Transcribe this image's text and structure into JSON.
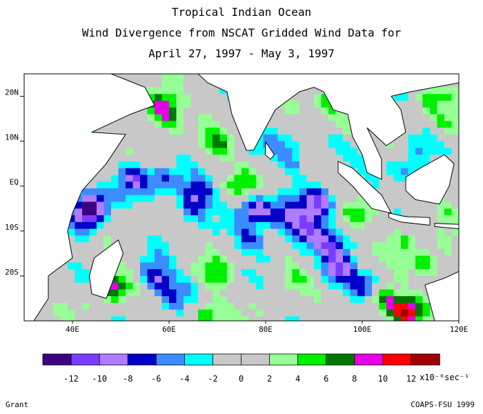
{
  "title": {
    "line1": "Tropical Indian Ocean",
    "line2": "Wind Divergence from NSCAT Gridded Wind Data for",
    "line3": "April 27, 1997 - May 3, 1997"
  },
  "map": {
    "lon_range": [
      30,
      120
    ],
    "lat_range": [
      -30,
      25
    ],
    "lat_ticks": [
      {
        "value": 20,
        "label": "20N"
      },
      {
        "value": 10,
        "label": "10N"
      },
      {
        "value": 0,
        "label": "EQ"
      },
      {
        "value": -10,
        "label": "10S"
      },
      {
        "value": -20,
        "label": "20S"
      }
    ],
    "lon_ticks": [
      {
        "value": 40,
        "label": "40E"
      },
      {
        "value": 60,
        "label": "60E"
      },
      {
        "value": 80,
        "label": "80E"
      },
      {
        "value": 100,
        "label": "100E"
      },
      {
        "value": 120,
        "label": "120E"
      }
    ],
    "field_blobs": [
      {
        "lon": 58,
        "lat": 18,
        "v": 9
      },
      {
        "lon": 60,
        "lat": 15,
        "v": 6
      },
      {
        "lon": 44,
        "lat": -4,
        "v": -11
      },
      {
        "lon": 43,
        "lat": -8,
        "v": -8
      },
      {
        "lon": 53,
        "lat": 2,
        "v": -9
      },
      {
        "lon": 59,
        "lat": 1,
        "v": -6
      },
      {
        "lon": 66,
        "lat": -2,
        "v": -8
      },
      {
        "lon": 64,
        "lat": -6,
        "v": -5
      },
      {
        "lon": 78,
        "lat": -5,
        "v": -9
      },
      {
        "lon": 84,
        "lat": -7,
        "v": -8
      },
      {
        "lon": 88,
        "lat": -10,
        "v": -9
      },
      {
        "lon": 91,
        "lat": -4,
        "v": -10
      },
      {
        "lon": 93,
        "lat": -13,
        "v": -7
      },
      {
        "lon": 77,
        "lat": -12,
        "v": -6
      },
      {
        "lon": 57,
        "lat": -20,
        "v": -9
      },
      {
        "lon": 61,
        "lat": -24,
        "v": -5
      },
      {
        "lon": 95,
        "lat": -19,
        "v": -10
      },
      {
        "lon": 101,
        "lat": -22,
        "v": -7
      },
      {
        "lon": 83,
        "lat": 10,
        "v": -3
      },
      {
        "lon": 86,
        "lat": 6,
        "v": -5
      },
      {
        "lon": 95,
        "lat": 9,
        "v": -4
      },
      {
        "lon": 110,
        "lat": 3,
        "v": -6
      },
      {
        "lon": 112,
        "lat": 10,
        "v": -3
      },
      {
        "lon": 70,
        "lat": 9,
        "v": 5
      },
      {
        "lon": 75,
        "lat": 0,
        "v": 4
      },
      {
        "lon": 70,
        "lat": -20,
        "v": 5
      },
      {
        "lon": 85,
        "lat": -20,
        "v": 4
      },
      {
        "lon": 108,
        "lat": -12,
        "v": 5
      },
      {
        "lon": 113,
        "lat": -18,
        "v": 6
      },
      {
        "lon": 109,
        "lat": -28,
        "v": 10
      },
      {
        "lon": 104,
        "lat": -25,
        "v": 8
      },
      {
        "lon": 68,
        "lat": -28,
        "v": 6
      },
      {
        "lon": 48,
        "lat": -22,
        "v": 9
      },
      {
        "lon": 97,
        "lat": 14,
        "v": 5
      },
      {
        "lon": 93,
        "lat": 18,
        "v": 6
      },
      {
        "lon": 114,
        "lat": 20,
        "v": 5
      },
      {
        "lon": 117,
        "lat": 13,
        "v": 4
      },
      {
        "lon": 118,
        "lat": -5,
        "v": 4
      },
      {
        "lon": 100,
        "lat": -6,
        "v": 3
      }
    ]
  },
  "colorbar": {
    "colors": [
      "#3d0080",
      "#7a3cff",
      "#b07cff",
      "#0000c8",
      "#3c8cff",
      "#00ffff",
      "#c8c8c8",
      "#c8c8c8",
      "#96ff96",
      "#00f000",
      "#007800",
      "#e600e6",
      "#ff0000",
      "#a00000"
    ],
    "ticks": [
      "-12",
      "-10",
      "-8",
      "-6",
      "-4",
      "-2",
      "0",
      "2",
      "4",
      "6",
      "8",
      "10",
      "12"
    ],
    "unit": "x10⁻⁶sec⁻¹"
  },
  "footer": {
    "left": "Grant",
    "right": "COAPS-FSU 1999"
  }
}
